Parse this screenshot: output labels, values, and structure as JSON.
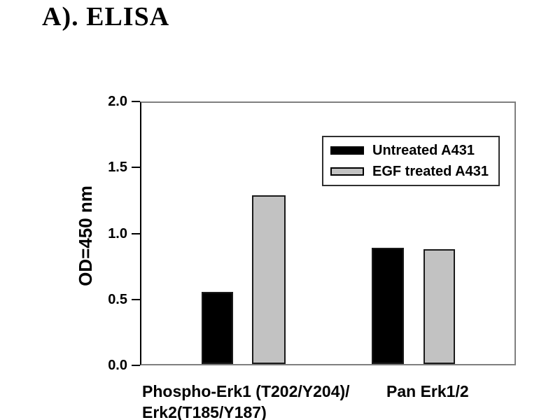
{
  "title": "A). ELISA",
  "chart_data": {
    "type": "bar",
    "title": "A). ELISA",
    "xlabel": "",
    "ylabel": "OD=450 nm",
    "ylim": [
      0.0,
      2.0
    ],
    "yticks": [
      "2.0",
      "1.5",
      "1.0",
      "0.5",
      "0.0"
    ],
    "grid": false,
    "legend_position": "upper right",
    "categories": [
      {
        "lines": [
          "Phospho-Erk1 (T202/Y204)/",
          "Erk2(T185/Y187)"
        ]
      },
      {
        "lines": [
          "Pan Erk1/2"
        ]
      }
    ],
    "series": [
      {
        "name": "Untreated A431",
        "color": "#000000",
        "values": [
          0.55,
          0.89
        ]
      },
      {
        "name": "EGF treated A431",
        "color": "#c2c2c2",
        "values": [
          1.29,
          0.88
        ]
      }
    ]
  },
  "colors": {
    "background": "#ffffff",
    "text": "#000000",
    "axis_frame": "#7f7f7f",
    "left_axis": "#000000",
    "bar_black": "#000000",
    "bar_gray": "#c2c2c2",
    "bar_border": "#1a1a1a",
    "legend_border": "#2f2f2f"
  }
}
